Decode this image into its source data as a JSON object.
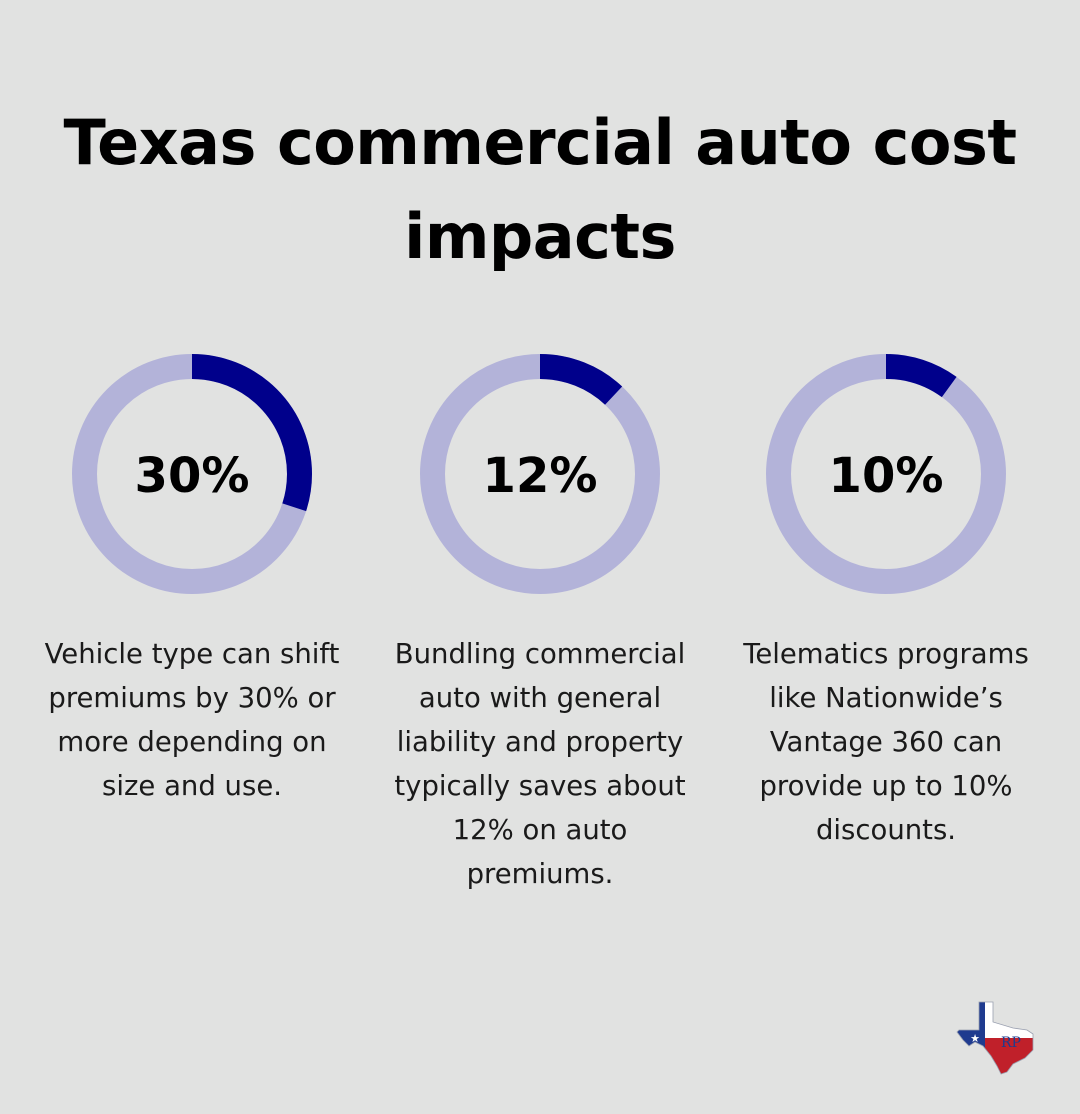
{
  "title": "Texas commercial auto cost impacts",
  "colors": {
    "background": "#e1e2e1",
    "ring_track": "#b3b3d9",
    "ring_fill": "#00008b",
    "logo_blue": "#1f3b8f",
    "logo_red": "#c0202a"
  },
  "logo": {
    "icon": "texas-map-logo-icon",
    "text": "RP"
  },
  "chart_data": [
    {
      "type": "pie",
      "style": "donut",
      "label": "30%",
      "value": 30,
      "max": 100,
      "description": "Vehicle type can shift premiums by 30% or more depending on size and use."
    },
    {
      "type": "pie",
      "style": "donut",
      "label": "12%",
      "value": 12,
      "max": 100,
      "description": "Bundling commercial auto with general liability and property typically saves about 12% on auto premiums."
    },
    {
      "type": "pie",
      "style": "donut",
      "label": "10%",
      "value": 10,
      "max": 100,
      "description": "Telematics programs like Nationwide’s Vantage 360 can provide up to 10% discounts."
    }
  ]
}
